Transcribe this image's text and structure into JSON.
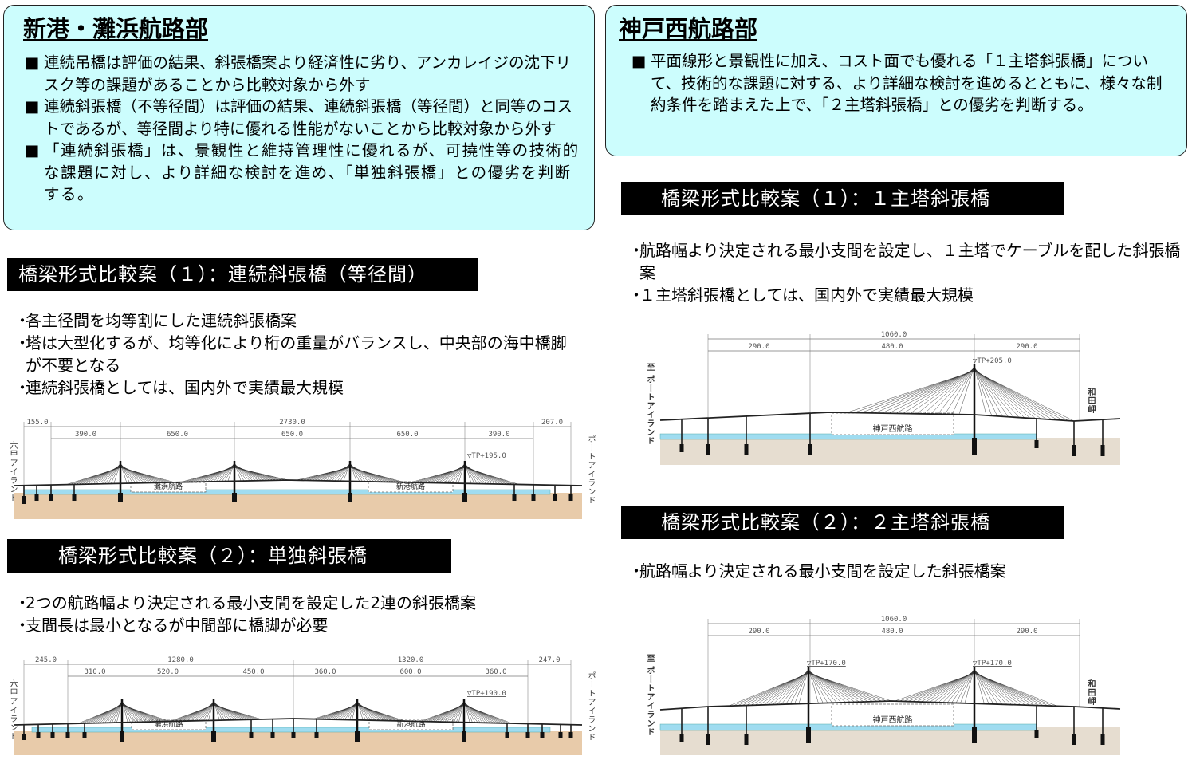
{
  "left": {
    "title": "新港・灘浜航路部",
    "points": [
      "連続吊橋は評価の結果、斜張橋案より経済性に劣り、アンカレイジの沈下リスク等の課題があることから比較対象から外す",
      "連続斜張橋（不等径間）は評価の結果、連続斜張橋（等径間）と同等のコストであるが、等径間より特に優れる性能がないことから比較対象から外す",
      "「連続斜張橋」は、景観性と維持管理性に優れるが、可撓性等の技術的な課題に対し、より詳細な検討を進め、「単独斜張橋」との優劣を判断する。"
    ],
    "plan1": {
      "banner": "橋梁形式比較案（１）：連続斜張橋（等径間）",
      "bullets": [
        "各主径間を均等割にした連続斜張橋案",
        "塔は大型化するが、均等化により桁の重量がバランスし、中央部の海中橋脚が不要となる",
        "連続斜張橋としては、国内外で実績最大規模"
      ],
      "dims_total": [
        "155.0",
        "2730.0",
        "207.0"
      ],
      "dims_spans": [
        "390.0",
        "650.0",
        "650.0",
        "650.0",
        "390.0"
      ],
      "elevation": "▽TP+195.0",
      "channels": [
        "灘浜航路",
        "新港航路"
      ],
      "end_left": "六甲アイランド",
      "end_right": "ポートアイランド"
    },
    "plan2": {
      "banner": "橋梁形式比較案（２）：単独斜張橋",
      "bullets": [
        "2つの航路幅より決定される最小支間を設定した2連の斜張橋案",
        "支間長は最小となるが中間部に橋脚が必要"
      ],
      "dims_total": [
        "245.0",
        "1280.0",
        "1320.0",
        "247.0"
      ],
      "dims_spans": [
        "310.0",
        "520.0",
        "450.0",
        "360.0",
        "600.0",
        "360.0"
      ],
      "elevation": "▽TP+190.0",
      "channels": [
        "灘浜航路",
        "新港航路"
      ],
      "end_left": "六甲アイランド",
      "end_right": "ポートアイランド"
    }
  },
  "right": {
    "title": "神戸西航路部",
    "points": [
      "平面線形と景観性に加え、コスト面でも優れる「１主塔斜張橋」について、技術的な課題に対する、より詳細な検討を進めるとともに、様々な制約条件を踏まえた上で、「２主塔斜張橋」との優劣を判断する。"
    ],
    "plan1": {
      "banner": "橋梁形式比較案（１）：１主塔斜張橋",
      "bullets": [
        "航路幅より決定される最小支間を設定し、１主塔でケーブルを配した斜張橋案",
        "１主塔斜張橋としては、国内外で実績最大規模"
      ],
      "dims_total": [
        "1060.0"
      ],
      "dims_spans": [
        "290.0",
        "480.0",
        "290.0"
      ],
      "elevation": "▽TP+205.0",
      "channels": [
        "神戸西航路"
      ],
      "end_left": "至 ポートアイランド",
      "end_right": "和田岬"
    },
    "plan2": {
      "banner": "橋梁形式比較案（２）：２主塔斜張橋",
      "bullets": [
        "航路幅より決定される最小支間を設定した斜張橋案"
      ],
      "dims_total": [
        "1060.0"
      ],
      "dims_spans": [
        "290.0",
        "480.0",
        "290.0"
      ],
      "elevation": "▽TP+170.0",
      "channels": [
        "神戸西航路"
      ],
      "end_left": "至 ポートアイランド",
      "end_right": "和田岬"
    }
  },
  "colors": {
    "box_bg": "#ccfdfd",
    "banner_bg": "#000000",
    "ground": "#e8cbaa",
    "ground_west": "#e6ddd0",
    "water": "#9fdcf0"
  }
}
